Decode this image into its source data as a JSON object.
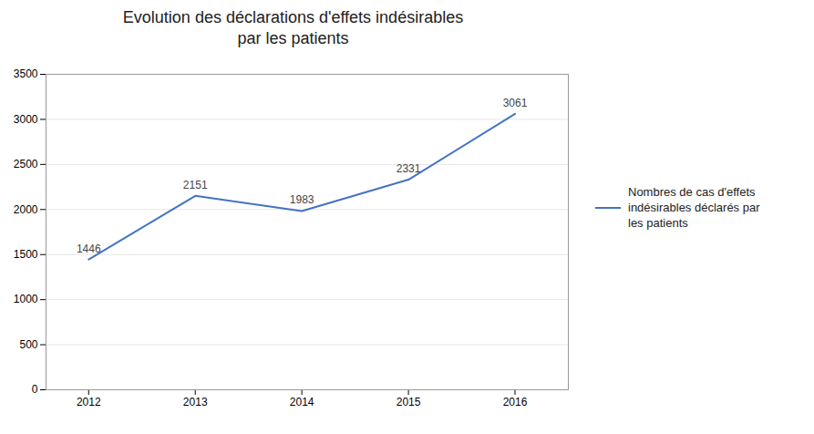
{
  "chart_data": {
    "type": "line",
    "title": "Evolution des déclarations d'effets indésirables\npar les patients",
    "x": [
      2012,
      2013,
      2014,
      2015,
      2016
    ],
    "series": [
      {
        "name": "Nombres de cas d'effets\nindésirables déclarés par\nles patients",
        "color": "#4472C4",
        "values": [
          1446,
          2151,
          1983,
          2331,
          3061
        ]
      }
    ],
    "xlim": [
      2011.6,
      2016.5
    ],
    "xticks": [
      2012,
      2013,
      2014,
      2015,
      2016
    ],
    "ylim": [
      0,
      3500
    ],
    "yticks": [
      0,
      500,
      1000,
      1500,
      2000,
      2500,
      3000,
      3500
    ],
    "grid": true,
    "legend": "right",
    "data_labels": true
  }
}
